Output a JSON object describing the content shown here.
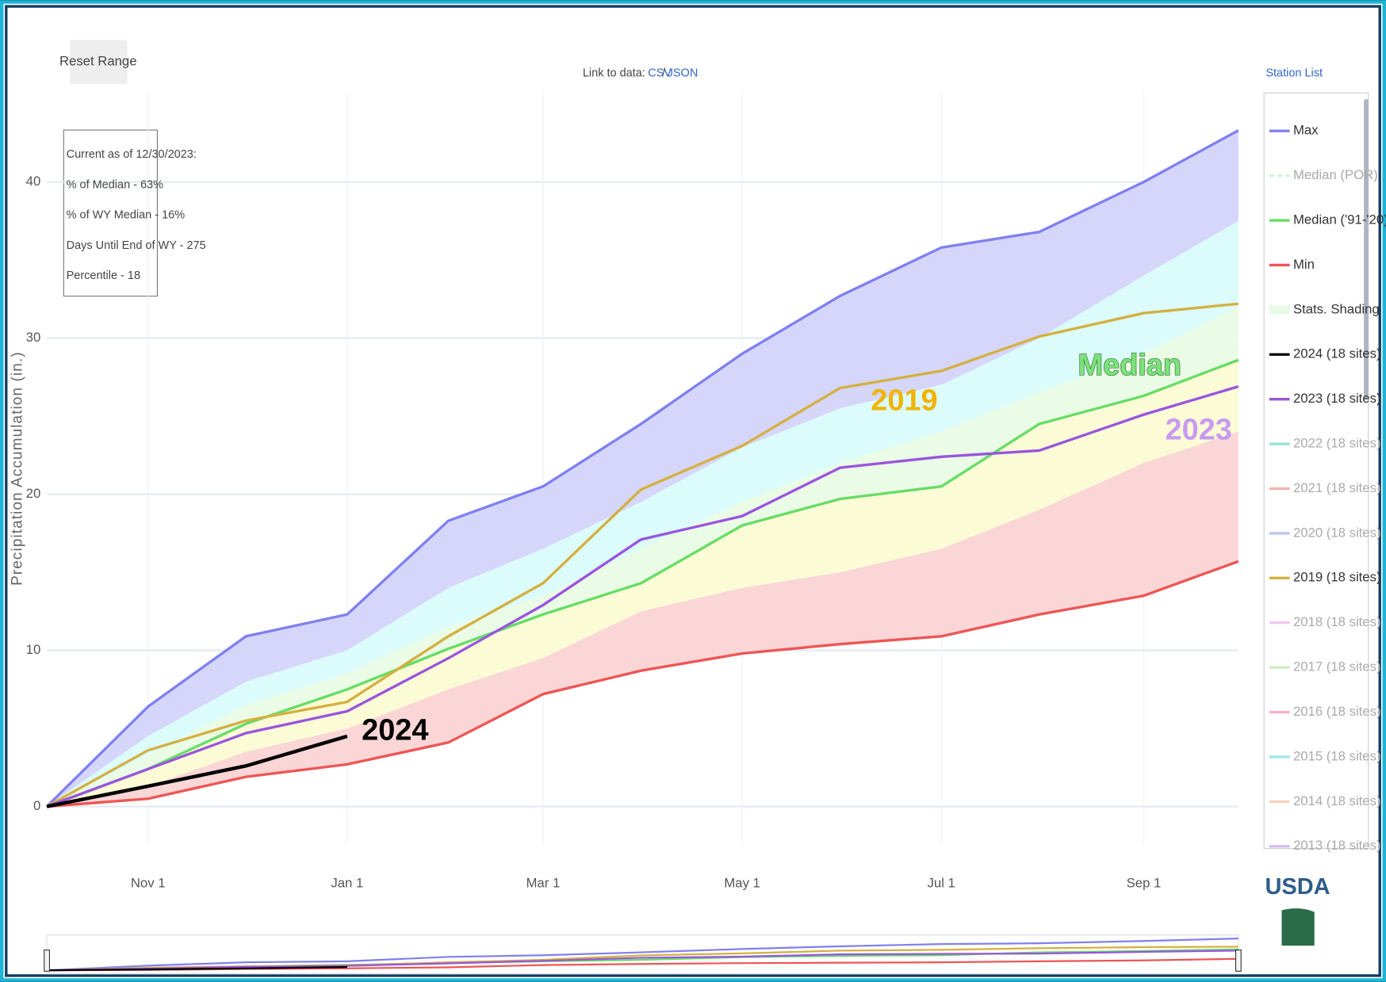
{
  "chart_data": {
    "type": "line",
    "buttons": [
      "Reset Range"
    ],
    "link_label": "Link to data:",
    "links": [
      "CSV",
      "JSON"
    ],
    "link_separator": "/",
    "station_list": "Station List",
    "ylabel": "Precipitation Accumulation (in.)",
    "info": [
      "Current as of 12/30/2023:",
      "% of Median - 63%",
      "% of WY Median - 16%",
      "Days Until End of WY - 275",
      "Percentile - 18"
    ],
    "annotations": [
      "2024",
      "Median",
      "2019",
      "2023"
    ],
    "logo": "USDA",
    "x": [
      0,
      31,
      61,
      92,
      123,
      152,
      182,
      213,
      243,
      274,
      304,
      336,
      365
    ],
    "xlim": [
      0,
      365
    ],
    "xticks": [
      {
        "value": 31,
        "label": "Nov 1"
      },
      {
        "value": 92,
        "label": "Jan 1"
      },
      {
        "value": 152,
        "label": "Mar 1"
      },
      {
        "value": 213,
        "label": "May 1"
      },
      {
        "value": 274,
        "label": "Jul 1"
      },
      {
        "value": 336,
        "label": "Sep 1"
      }
    ],
    "ylim": [
      -2.4,
      45.7
    ],
    "yticks": [
      0,
      10,
      20,
      30,
      40
    ],
    "grid": true,
    "legend": "right",
    "series": [
      {
        "name": "Max",
        "color": "#8080f0",
        "visible": true,
        "values": [
          0,
          6.4,
          10.9,
          12.3,
          18.3,
          20.5,
          24.5,
          29,
          32.7,
          35.8,
          36.8,
          40,
          43.3
        ]
      },
      {
        "name": "Median (POR)",
        "color": "#a8e8a8",
        "dash": true,
        "visible": false
      },
      {
        "name": "Median ('91-'20)",
        "color": "#66dd66",
        "visible": true,
        "values": [
          0,
          2.4,
          5.3,
          7.5,
          10.1,
          12.3,
          14.3,
          18,
          19.7,
          20.5,
          24.5,
          26.3,
          28.6
        ]
      },
      {
        "name": "Min",
        "color": "#ee5555",
        "visible": true,
        "values": [
          0,
          0.5,
          1.9,
          2.7,
          4.1,
          7.2,
          8.7,
          9.8,
          10.4,
          10.9,
          12.3,
          13.5,
          15.7
        ]
      },
      {
        "name": "Stats. Shading",
        "color": "#e6fae6",
        "visible": true,
        "levels": [
          [
            0,
            4.5,
            8,
            10,
            14,
            16.5,
            19.5,
            23,
            25.5,
            27,
            30,
            34,
            37.5
          ],
          [
            0,
            3.3,
            6.5,
            8.5,
            11.5,
            13.5,
            16.5,
            19.5,
            22,
            24,
            26.5,
            29,
            32
          ],
          [
            0,
            1.3,
            3.5,
            5,
            7.5,
            9.5,
            12.5,
            14,
            15,
            16.5,
            19,
            22,
            24
          ]
        ],
        "colors": [
          "#d6d6fb",
          "#dcfbfb",
          "#eafbe6",
          "#fbfbd6",
          "#fbd6d6"
        ]
      },
      {
        "name": "2024 (18 sites)",
        "color": "#000000",
        "visible": true,
        "values": [
          0,
          1.3,
          2.6,
          4.5,
          null,
          null,
          null,
          null,
          null,
          null,
          null,
          null,
          null
        ]
      },
      {
        "name": "2023 (18 sites)",
        "color": "#9955dd",
        "visible": true,
        "values": [
          0,
          2.4,
          4.7,
          6.1,
          9.5,
          12.9,
          17.1,
          18.6,
          21.7,
          22.4,
          22.8,
          25.1,
          26.9
        ]
      },
      {
        "name": "2022 (18 sites)",
        "color": "#44ccaa",
        "visible": false
      },
      {
        "name": "2021 (18 sites)",
        "color": "#ee7766",
        "visible": false
      },
      {
        "name": "2020 (18 sites)",
        "color": "#8899dd",
        "visible": false
      },
      {
        "name": "2019 (18 sites)",
        "color": "#d4b040",
        "visible": true,
        "values": [
          0,
          3.6,
          5.5,
          6.7,
          10.9,
          14.3,
          20.3,
          23.1,
          26.8,
          27.9,
          30.1,
          31.6,
          32.2
        ]
      },
      {
        "name": "2018 (18 sites)",
        "color": "#ee99ee",
        "visible": false
      },
      {
        "name": "2017 (18 sites)",
        "color": "#aad88a",
        "visible": false
      },
      {
        "name": "2016 (18 sites)",
        "color": "#ee7799",
        "visible": false
      },
      {
        "name": "2015 (18 sites)",
        "color": "#55ccdd",
        "visible": false
      },
      {
        "name": "2014 (18 sites)",
        "color": "#f0b080",
        "visible": false
      },
      {
        "name": "2013 (18 sites)",
        "color": "#aa88dd",
        "visible": false
      }
    ]
  }
}
